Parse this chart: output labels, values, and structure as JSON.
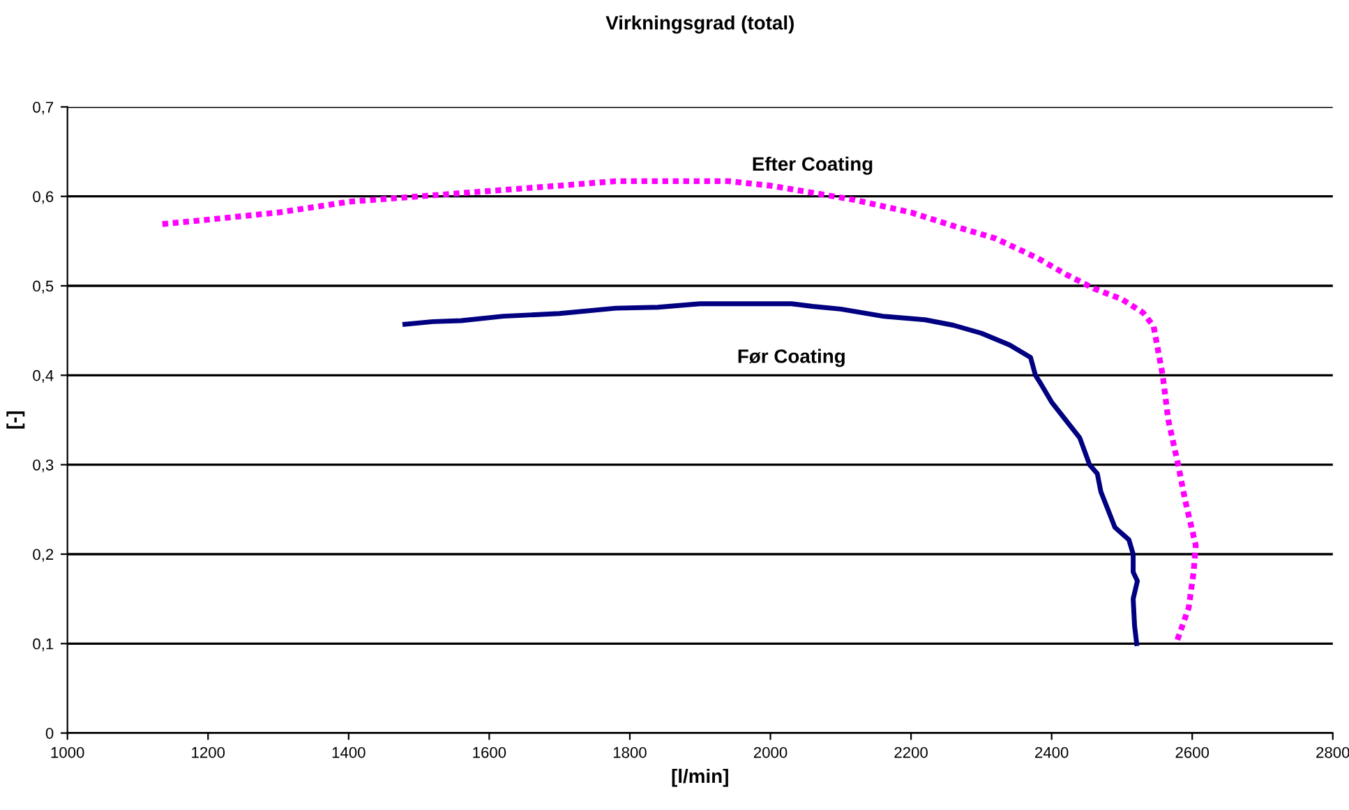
{
  "chart_data": {
    "type": "line",
    "title": "Virkningsgrad (total)",
    "xlabel": "[l/min]",
    "ylabel": "[-]",
    "xlim": [
      1000,
      2800
    ],
    "xticks": [
      1000,
      1200,
      1400,
      1600,
      1800,
      2000,
      2200,
      2400,
      2600,
      2800
    ],
    "ylim": [
      0,
      0.7
    ],
    "yticks": [
      {
        "value": 0,
        "label": "0"
      },
      {
        "value": 0.1,
        "label": "0,1"
      },
      {
        "value": 0.2,
        "label": "0,2"
      },
      {
        "value": 0.3,
        "label": "0,3"
      },
      {
        "value": 0.4,
        "label": "0,4"
      },
      {
        "value": 0.5,
        "label": "0,5"
      },
      {
        "value": 0.6,
        "label": "0,6"
      },
      {
        "value": 0.7,
        "label": "0,7"
      }
    ],
    "grid": "y",
    "legend": false,
    "marker": "none",
    "series": [
      {
        "name": "Efter Coating",
        "color": "#ff00ff",
        "line_style": "dotted",
        "x": [
          1135,
          1200,
          1300,
          1400,
          1500,
          1600,
          1700,
          1780,
          1940,
          2000,
          2060,
          2120,
          2200,
          2260,
          2320,
          2380,
          2420,
          2460,
          2500,
          2530,
          2545,
          2558,
          2566,
          2580,
          2590,
          2605,
          2602,
          2595,
          2577
        ],
        "values": [
          0.569,
          0.574,
          0.582,
          0.594,
          0.6,
          0.606,
          0.612,
          0.617,
          0.617,
          0.612,
          0.604,
          0.596,
          0.582,
          0.567,
          0.553,
          0.531,
          0.513,
          0.497,
          0.485,
          0.47,
          0.455,
          0.4,
          0.35,
          0.3,
          0.26,
          0.21,
          0.18,
          0.14,
          0.1
        ]
      },
      {
        "name": "Før Coating",
        "color": "#000080",
        "line_style": "solid",
        "x": [
          1480,
          1520,
          1560,
          1620,
          1700,
          1780,
          1840,
          1900,
          2030,
          2060,
          2100,
          2160,
          2220,
          2260,
          2300,
          2340,
          2370,
          2377,
          2385,
          2400,
          2420,
          2440,
          2454,
          2465,
          2470,
          2480,
          2490,
          2510,
          2516,
          2516,
          2522,
          2516,
          2518,
          2521
        ],
        "values": [
          0.457,
          0.46,
          0.461,
          0.466,
          0.469,
          0.475,
          0.476,
          0.48,
          0.48,
          0.477,
          0.474,
          0.466,
          0.462,
          0.456,
          0.447,
          0.434,
          0.42,
          0.4,
          0.39,
          0.37,
          0.35,
          0.33,
          0.3,
          0.29,
          0.27,
          0.25,
          0.23,
          0.216,
          0.2,
          0.18,
          0.17,
          0.15,
          0.12,
          0.1
        ]
      }
    ]
  }
}
